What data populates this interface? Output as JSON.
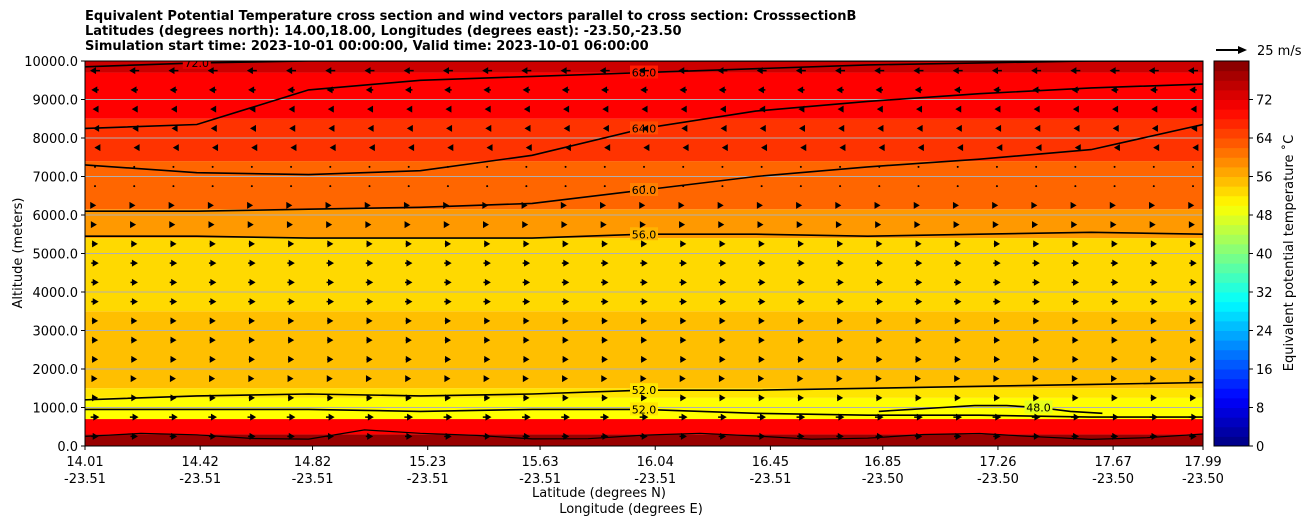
{
  "title_lines": [
    "Equivalent Potential Temperature cross section and wind vectors parallel to cross section: CrosssectionB",
    "Latitudes (degrees north): 14.00,18.00, Longitudes (degrees east): -23.50,-23.50",
    "Simulation start time: 2023-10-01 00:00:00, Valid time: 2023-10-01 06:00:00"
  ],
  "quiver_key": "25 m/s",
  "chart_data": {
    "type": "contourf cross section with wind vectors",
    "ylabel": "Altitude (meters)",
    "xlabel_lines": [
      "Latitude (degrees N)",
      "Longitude (degrees E)"
    ],
    "colorbar_label": "Equivalent potential temperature ˚C",
    "ylim": [
      0,
      10000
    ],
    "xlim": [
      14.01,
      17.99
    ],
    "grid": "horizontal",
    "y_ticks": [
      "0.0",
      "1000.0",
      "2000.0",
      "3000.0",
      "4000.0",
      "5000.0",
      "6000.0",
      "7000.0",
      "8000.0",
      "9000.0",
      "10000.0"
    ],
    "x_ticks": [
      {
        "lat": "14.01",
        "lon": "-23.51"
      },
      {
        "lat": "14.42",
        "lon": "-23.51"
      },
      {
        "lat": "14.82",
        "lon": "-23.51"
      },
      {
        "lat": "15.23",
        "lon": "-23.51"
      },
      {
        "lat": "15.63",
        "lon": "-23.51"
      },
      {
        "lat": "16.04",
        "lon": "-23.51"
      },
      {
        "lat": "16.45",
        "lon": "-23.51"
      },
      {
        "lat": "16.85",
        "lon": "-23.50"
      },
      {
        "lat": "17.26",
        "lon": "-23.50"
      },
      {
        "lat": "17.67",
        "lon": "-23.50"
      },
      {
        "lat": "17.99",
        "lon": "-23.50"
      }
    ],
    "colorbar_ticks": [
      "0",
      "8",
      "16",
      "24",
      "32",
      "40",
      "48",
      "56",
      "64",
      "72"
    ],
    "colorbar_range": [
      0,
      80
    ],
    "contours": [
      {
        "label": "72.0",
        "y": [
          9850,
          9950,
          10000,
          10000,
          10000,
          10000,
          10000,
          10000,
          10000,
          10000,
          10000
        ]
      },
      {
        "label": "68.0",
        "y": [
          8250,
          8350,
          9250,
          9500,
          9600,
          9700,
          9800,
          9900,
          9950,
          10000,
          10000
        ]
      },
      {
        "label": "64.0",
        "y": [
          7300,
          7100,
          7050,
          7150,
          7550,
          8250,
          8700,
          8950,
          9150,
          9300,
          9400
        ]
      },
      {
        "label": "60.0",
        "y": [
          6100,
          6100,
          6150,
          6200,
          6300,
          6650,
          7000,
          7250,
          7450,
          7700,
          8350
        ]
      },
      {
        "label": "56.0",
        "y": [
          5450,
          5450,
          5400,
          5400,
          5400,
          5500,
          5500,
          5450,
          5500,
          5550,
          5500
        ]
      },
      {
        "label": "52.0",
        "y": [
          1200,
          1300,
          1350,
          1300,
          1350,
          1450,
          1450,
          1500,
          1550,
          1600,
          1650
        ]
      },
      {
        "label": "52.0",
        "y": [
          950,
          950,
          950,
          900,
          950,
          950,
          850,
          800,
          800,
          750,
          750
        ]
      },
      {
        "label": "48.0",
        "y": [
          900,
          950,
          1000,
          1050,
          1050,
          1000,
          900,
          850
        ]
      }
    ],
    "fill_bands": [
      {
        "from": 0,
        "to": 300,
        "value": 78
      },
      {
        "from": 300,
        "to": 700,
        "value": 70
      },
      {
        "from": 700,
        "to": 1250,
        "value": 50
      },
      {
        "from": 1250,
        "to": 1500,
        "value": 52
      },
      {
        "from": 1500,
        "to": 3500,
        "value": 55
      },
      {
        "from": 3500,
        "to": 5400,
        "value": 53
      },
      {
        "from": 5400,
        "to": 6150,
        "value": 58
      },
      {
        "from": 6150,
        "to": 7400,
        "value": 62
      },
      {
        "from": 7400,
        "to": 8500,
        "value": 66
      },
      {
        "from": 8500,
        "to": 9700,
        "value": 70
      },
      {
        "from": 9700,
        "to": 10000,
        "value": 74
      }
    ],
    "wind_vectors": {
      "altitudes": [
        0,
        500,
        1000,
        1500,
        2000,
        2500,
        3000,
        3500,
        4000,
        4500,
        5000,
        5500,
        6000,
        6500,
        7000,
        7500,
        8000,
        8500,
        9000,
        9500
      ],
      "u_ms": [
        6,
        7,
        5,
        4,
        5,
        5,
        5,
        6,
        6,
        6,
        5,
        3,
        2,
        0.5,
        -0.5,
        -1,
        -3,
        -4,
        -6,
        -8
      ]
    }
  }
}
